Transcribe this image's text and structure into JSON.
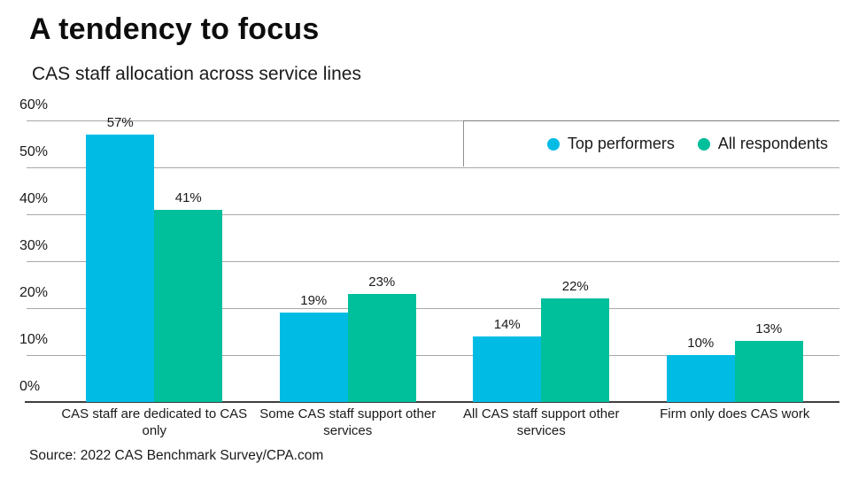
{
  "header": {
    "title": "A tendency to focus",
    "subtitle": "CAS staff allocation across service lines"
  },
  "chart_data": {
    "type": "bar",
    "categories": [
      "CAS staff are dedicated to CAS only",
      "Some CAS staff support other services",
      "All CAS staff support other services",
      "Firm only does CAS work"
    ],
    "series": [
      {
        "name": "Top performers",
        "color": "#00BCE4",
        "values": [
          57,
          19,
          14,
          10
        ]
      },
      {
        "name": "All respondents",
        "color": "#00BF9B",
        "values": [
          41,
          23,
          22,
          13
        ]
      }
    ],
    "value_suffix": "%",
    "title": "A tendency to focus",
    "subtitle": "CAS staff allocation across service lines",
    "xlabel": "",
    "ylabel": "",
    "ylim": [
      0,
      60
    ],
    "yticks": [
      0,
      10,
      20,
      30,
      40,
      50,
      60
    ],
    "ytick_suffix": "%",
    "grid": true,
    "legend_position": "top-right"
  },
  "footer": {
    "source": "Source: 2022 CAS Benchmark Survey/CPA.com"
  },
  "colors": {
    "gridline": "#a8a8a8",
    "axis": "#3f3f3f",
    "text": "#1a1a1a",
    "background": "#ffffff"
  }
}
